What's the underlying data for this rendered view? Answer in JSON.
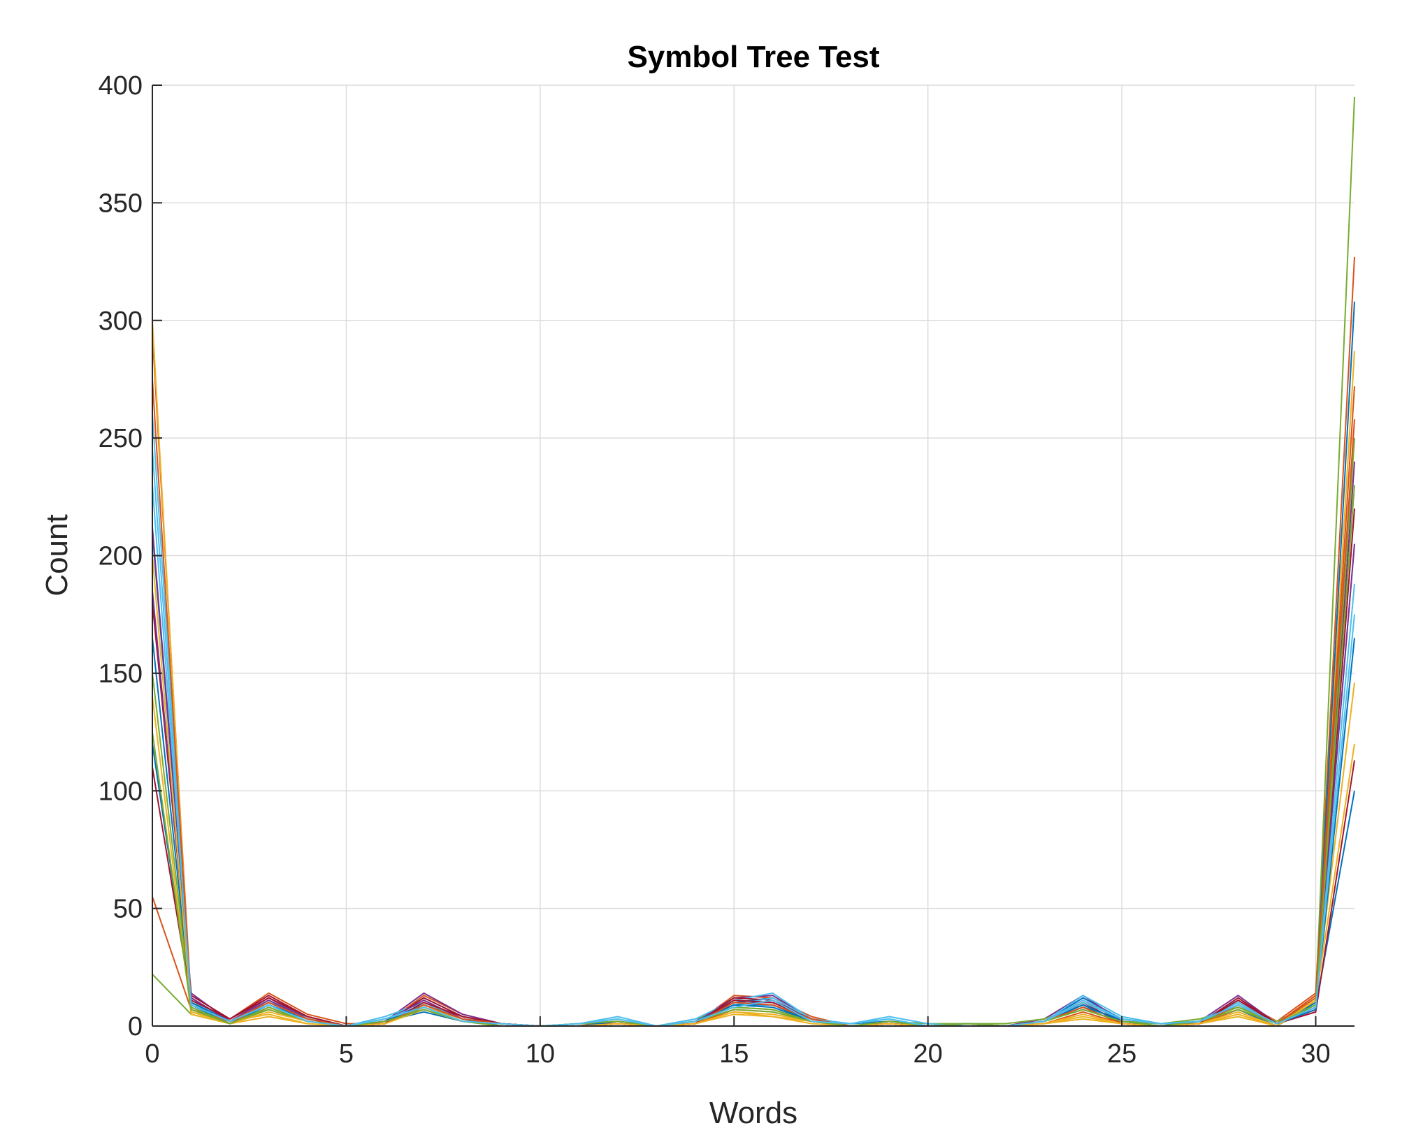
{
  "chart_data": {
    "type": "line",
    "title": "Symbol Tree Test",
    "xlabel": "Words",
    "ylabel": "Count",
    "xlim": [
      0,
      31
    ],
    "ylim": [
      0,
      400
    ],
    "xticks": [
      0,
      5,
      10,
      15,
      20,
      25,
      30
    ],
    "yticks": [
      0,
      50,
      100,
      150,
      200,
      250,
      300,
      350,
      400
    ],
    "grid": true,
    "x": [
      0,
      1,
      2,
      3,
      4,
      5,
      6,
      7,
      8,
      9,
      10,
      11,
      12,
      13,
      14,
      15,
      16,
      17,
      18,
      19,
      20,
      21,
      22,
      23,
      24,
      25,
      26,
      27,
      28,
      29,
      30,
      31
    ],
    "series": [
      {
        "color": "#0072BD",
        "values": [
          210,
          12,
          2,
          10,
          4,
          0,
          2,
          12,
          4,
          1,
          0,
          0,
          2,
          0,
          2,
          10,
          12,
          3,
          1,
          2,
          0,
          1,
          0,
          2,
          12,
          3,
          1,
          2,
          10,
          1,
          8,
          100
        ]
      },
      {
        "color": "#D95319",
        "values": [
          295,
          10,
          3,
          14,
          5,
          1,
          1,
          13,
          5,
          1,
          0,
          1,
          1,
          0,
          1,
          13,
          12,
          4,
          0,
          1,
          0,
          0,
          0,
          2,
          11,
          2,
          0,
          1,
          11,
          2,
          14,
          327
        ]
      },
      {
        "color": "#EDB120",
        "values": [
          300,
          6,
          2,
          5,
          1,
          0,
          1,
          8,
          3,
          0,
          0,
          0,
          1,
          0,
          1,
          6,
          4,
          2,
          0,
          1,
          0,
          0,
          0,
          1,
          4,
          1,
          0,
          1,
          5,
          0,
          12,
          287
        ]
      },
      {
        "color": "#7E2F8E",
        "values": [
          212,
          14,
          2,
          12,
          3,
          0,
          2,
          14,
          5,
          1,
          0,
          0,
          1,
          0,
          2,
          12,
          13,
          3,
          0,
          1,
          0,
          1,
          0,
          3,
          13,
          2,
          1,
          2,
          13,
          1,
          6,
          240
        ]
      },
      {
        "color": "#77AC30",
        "values": [
          22,
          5,
          1,
          8,
          2,
          0,
          3,
          9,
          3,
          0,
          0,
          1,
          2,
          0,
          3,
          8,
          7,
          2,
          0,
          2,
          1,
          1,
          1,
          3,
          9,
          2,
          1,
          3,
          8,
          2,
          10,
          395
        ]
      },
      {
        "color": "#4DBEEE",
        "values": [
          260,
          11,
          2,
          11,
          3,
          0,
          4,
          10,
          3,
          1,
          0,
          1,
          4,
          0,
          3,
          11,
          14,
          3,
          1,
          4,
          1,
          0,
          0,
          2,
          13,
          4,
          1,
          2,
          11,
          1,
          9,
          205
        ]
      },
      {
        "color": "#A2142F",
        "values": [
          180,
          13,
          3,
          13,
          4,
          0,
          1,
          12,
          4,
          1,
          0,
          0,
          1,
          0,
          1,
          12,
          11,
          3,
          0,
          1,
          0,
          0,
          0,
          2,
          10,
          1,
          0,
          1,
          12,
          1,
          7,
          220
        ]
      },
      {
        "color": "#0072BD",
        "values": [
          120,
          9,
          1,
          9,
          2,
          0,
          2,
          6,
          2,
          0,
          0,
          0,
          1,
          0,
          2,
          9,
          8,
          2,
          0,
          2,
          0,
          1,
          0,
          2,
          8,
          3,
          1,
          1,
          7,
          0,
          10,
          308
        ]
      },
      {
        "color": "#D95319",
        "values": [
          55,
          7,
          2,
          7,
          2,
          0,
          1,
          8,
          2,
          1,
          0,
          0,
          1,
          0,
          1,
          7,
          6,
          2,
          0,
          1,
          0,
          0,
          0,
          1,
          6,
          1,
          0,
          1,
          7,
          1,
          12,
          272
        ]
      },
      {
        "color": "#EDB120",
        "values": [
          140,
          5,
          1,
          4,
          1,
          0,
          1,
          7,
          2,
          0,
          0,
          0,
          1,
          0,
          1,
          5,
          4,
          1,
          0,
          1,
          0,
          0,
          0,
          1,
          3,
          1,
          0,
          1,
          4,
          0,
          11,
          146
        ]
      },
      {
        "color": "#7E2F8E",
        "values": [
          185,
          12,
          2,
          11,
          3,
          0,
          2,
          11,
          3,
          1,
          0,
          0,
          1,
          0,
          2,
          10,
          10,
          3,
          0,
          1,
          0,
          0,
          0,
          2,
          9,
          2,
          0,
          1,
          9,
          1,
          8,
          205
        ]
      },
      {
        "color": "#77AC30",
        "values": [
          150,
          8,
          1,
          7,
          2,
          0,
          2,
          8,
          2,
          0,
          0,
          1,
          2,
          0,
          2,
          8,
          7,
          2,
          0,
          2,
          0,
          1,
          0,
          2,
          7,
          2,
          1,
          2,
          8,
          1,
          9,
          250
        ]
      },
      {
        "color": "#4DBEEE",
        "values": [
          245,
          10,
          2,
          10,
          3,
          0,
          3,
          9,
          3,
          1,
          0,
          1,
          3,
          0,
          2,
          9,
          12,
          3,
          1,
          3,
          0,
          1,
          0,
          2,
          11,
          3,
          1,
          2,
          10,
          1,
          9,
          188
        ]
      },
      {
        "color": "#A2142F",
        "values": [
          110,
          11,
          3,
          12,
          4,
          0,
          1,
          10,
          4,
          1,
          0,
          0,
          1,
          0,
          1,
          11,
          10,
          3,
          0,
          1,
          0,
          0,
          0,
          2,
          10,
          1,
          0,
          1,
          11,
          1,
          6,
          113
        ]
      },
      {
        "color": "#0072BD",
        "values": [
          165,
          10,
          2,
          9,
          3,
          0,
          2,
          9,
          3,
          0,
          0,
          0,
          2,
          0,
          2,
          9,
          9,
          2,
          0,
          2,
          0,
          0,
          0,
          2,
          9,
          2,
          0,
          2,
          9,
          1,
          7,
          165
        ]
      },
      {
        "color": "#D95319",
        "values": [
          275,
          9,
          2,
          10,
          3,
          0,
          1,
          9,
          3,
          1,
          0,
          0,
          1,
          0,
          1,
          10,
          9,
          3,
          0,
          1,
          0,
          0,
          0,
          2,
          8,
          1,
          0,
          1,
          9,
          1,
          13,
          258
        ]
      },
      {
        "color": "#EDB120",
        "values": [
          200,
          6,
          1,
          6,
          2,
          0,
          1,
          7,
          2,
          0,
          0,
          0,
          1,
          0,
          1,
          6,
          5,
          2,
          0,
          1,
          0,
          0,
          0,
          1,
          5,
          1,
          0,
          1,
          6,
          0,
          11,
          120
        ]
      },
      {
        "color": "#77AC30",
        "values": [
          125,
          7,
          1,
          8,
          2,
          0,
          2,
          7,
          2,
          0,
          0,
          1,
          2,
          0,
          2,
          7,
          6,
          2,
          0,
          2,
          0,
          1,
          0,
          2,
          7,
          2,
          0,
          2,
          7,
          1,
          9,
          230
        ]
      },
      {
        "color": "#4DBEEE",
        "values": [
          230,
          9,
          2,
          9,
          2,
          0,
          3,
          8,
          2,
          1,
          0,
          1,
          3,
          0,
          2,
          8,
          11,
          2,
          1,
          3,
          0,
          0,
          0,
          2,
          10,
          3,
          1,
          2,
          9,
          1,
          8,
          175
        ]
      }
    ]
  }
}
